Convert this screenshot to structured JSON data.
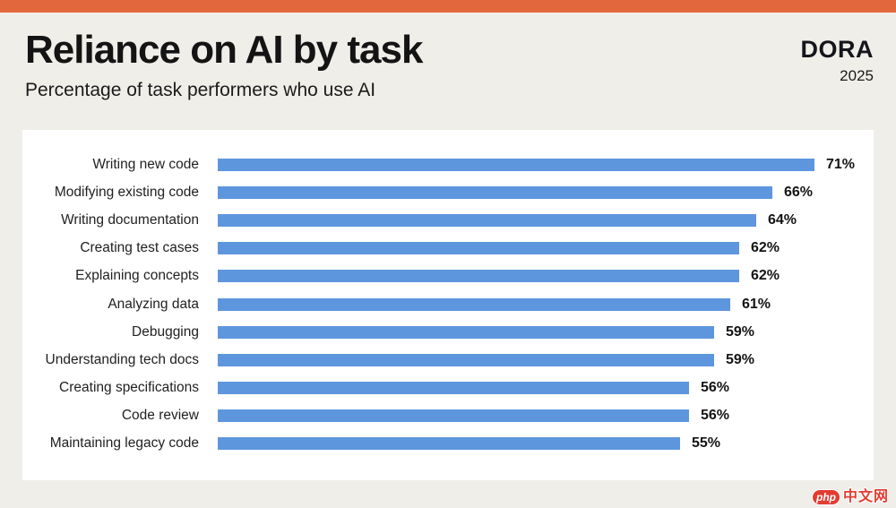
{
  "page": {
    "background_color": "#F0EEE9",
    "topbar_color": "#E2673C"
  },
  "header": {
    "title": "Reliance on AI by task",
    "subtitle": "Percentage of task performers who use AI",
    "brand": "DORA",
    "year": "2025"
  },
  "chart_data": {
    "type": "bar",
    "orientation": "horizontal",
    "title": "Reliance on AI by task",
    "subtitle": "Percentage of task performers who use AI",
    "categories": [
      "Writing new code",
      "Modifying existing code",
      "Writing documentation",
      "Creating test cases",
      "Explaining concepts",
      "Analyzing data",
      "Debugging",
      "Understanding tech docs",
      "Creating specifications",
      "Code review",
      "Maintaining legacy code"
    ],
    "values": [
      71,
      66,
      64,
      62,
      62,
      61,
      59,
      59,
      56,
      56,
      55
    ],
    "value_suffix": "%",
    "xlim": [
      0,
      78
    ],
    "grid": false,
    "legend": false,
    "bar_color": "#5E96DE",
    "value_label_color": "#141414"
  },
  "watermark": {
    "badge": "php",
    "text": "中文网",
    "color": "#E23C30"
  }
}
